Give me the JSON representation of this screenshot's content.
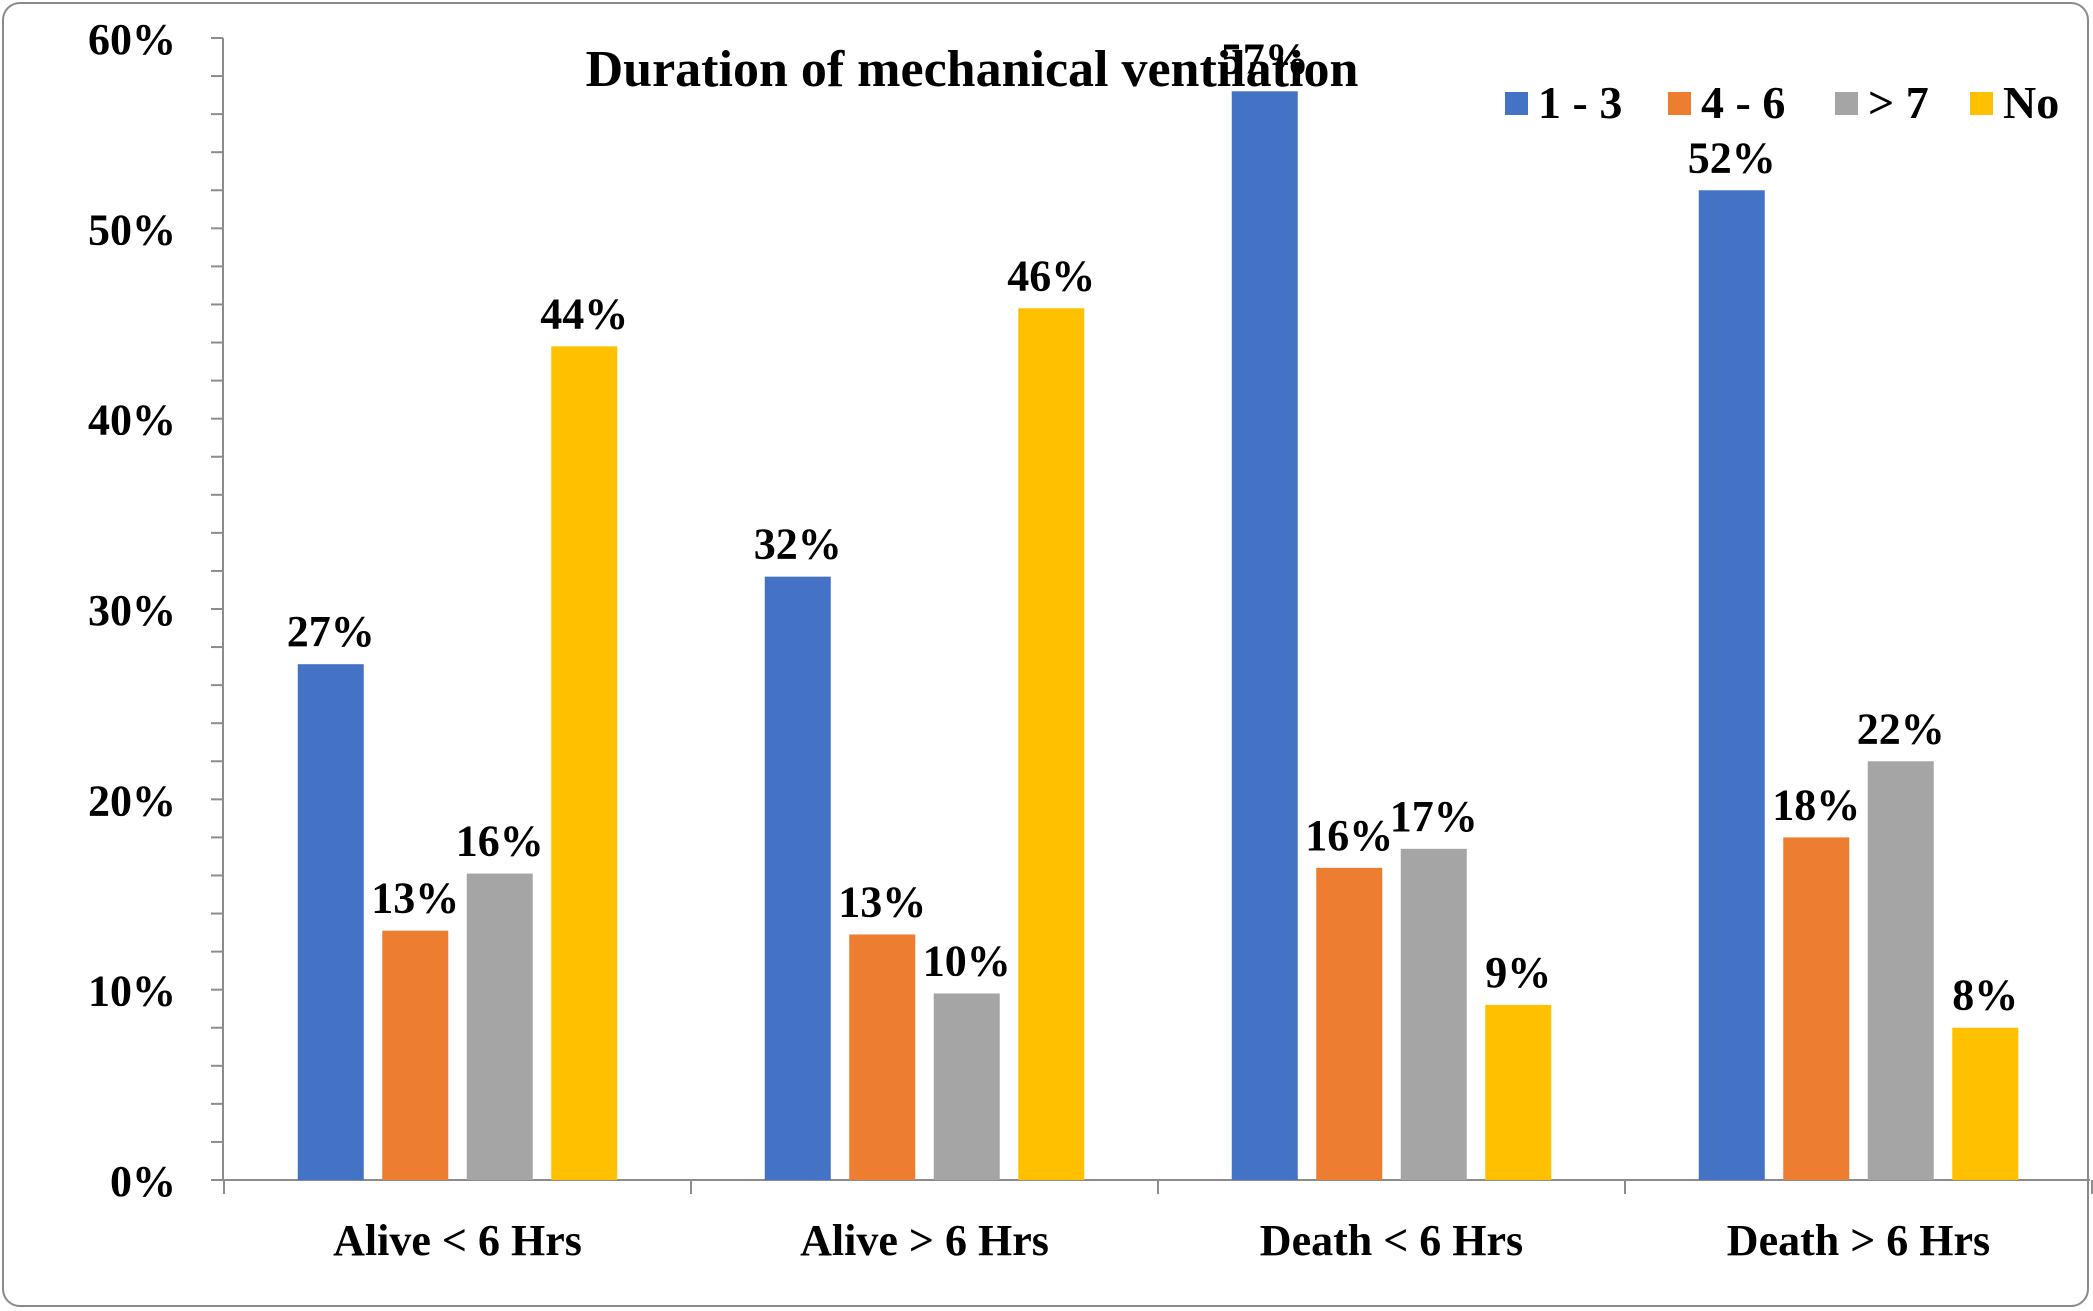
{
  "chart_data": {
    "type": "bar",
    "title": "Duration of mechanical ventilation",
    "categories": [
      "Alive < 6 Hrs",
      "Alive > 6 Hrs",
      "Death < 6 Hrs",
      "Death > 6 Hrs"
    ],
    "series": [
      {
        "name": "1 - 3",
        "color": "#4472C4",
        "values": [
          27.1,
          31.7,
          57.2,
          52.0
        ],
        "labels": [
          "27%",
          "32%",
          "57%",
          "52%"
        ]
      },
      {
        "name": "4 - 6",
        "color": "#ED7D31",
        "values": [
          13.1,
          12.9,
          16.4,
          18.0
        ],
        "labels": [
          "13%",
          "13%",
          "16%",
          "18%"
        ]
      },
      {
        "name": "> 7",
        "color": "#A5A5A5",
        "values": [
          16.1,
          9.8,
          17.4,
          22.0
        ],
        "labels": [
          "16%",
          "10%",
          "17%",
          "22%"
        ]
      },
      {
        "name": "No",
        "color": "#FFC000",
        "values": [
          43.8,
          45.8,
          9.2,
          8.0
        ],
        "labels": [
          "44%",
          "46%",
          "9%",
          "8%"
        ]
      }
    ],
    "ylim": [
      0,
      60
    ],
    "yticks": [
      0,
      10,
      20,
      30,
      40,
      50,
      60
    ],
    "ytick_labels": [
      "0%",
      "10%",
      "20%",
      "30%",
      "40%",
      "50%",
      "60%"
    ],
    "legend_position": "top-right",
    "grid": false
  }
}
